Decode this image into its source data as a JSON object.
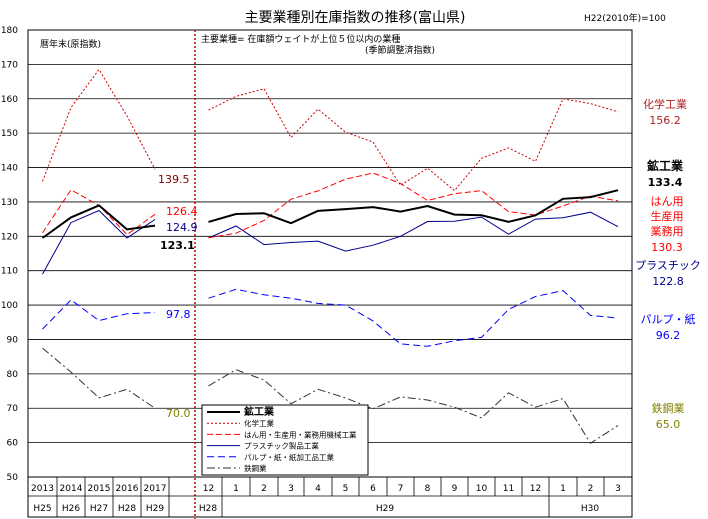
{
  "chart_data": {
    "type": "line",
    "title": "主要業種別在庫指数の推移(富山県)",
    "base_note": "H22(2010年)=100",
    "annual_note": "暦年末(原指数)",
    "monthly_note_1": "主要業種= 在庫額ウェイトが上位５位以内の業種",
    "monthly_note_2": "(季節調整済指数)",
    "ylim": [
      50,
      180
    ],
    "yticks": [
      "180",
      "170",
      "160",
      "150",
      "140",
      "130",
      "120",
      "110",
      "100",
      "90",
      "80",
      "70",
      "60",
      "50"
    ],
    "x_top": [
      "2013",
      "2014",
      "2015",
      "2016",
      "2017",
      "",
      "12",
      "1",
      "2",
      "3",
      "4",
      "5",
      "6",
      "7",
      "8",
      "9",
      "10",
      "11",
      "12",
      "1",
      "2",
      "3"
    ],
    "era_labels": {
      "h25": "H25",
      "h26": "H26",
      "h27": "H27",
      "h28": "H28",
      "h29a": "H29",
      "h28b": "H28",
      "h29b": "H29",
      "h30": "H30"
    },
    "legend": [
      "鉱工業",
      "化学工業",
      "はん用・生産用・業務用機械工業",
      "プラスチック製品工業",
      "パルプ・紙・紙加工品工業",
      "鉄鋼業"
    ],
    "series": [
      {
        "name": "鉱工業",
        "color": "#000000",
        "annual": [
          119.5,
          125.5,
          129.0,
          122.0,
          123.1
        ],
        "monthly": [
          124.2,
          126.5,
          126.7,
          123.8,
          127.4,
          127.9,
          128.5,
          127.2,
          128.8,
          126.3,
          126.1,
          124.2,
          126.1,
          130.9,
          131.4,
          133.4
        ]
      },
      {
        "name": "化学工業",
        "color": "#cc0000",
        "annual": [
          136.0,
          157.5,
          168.5,
          155.0,
          139.5
        ],
        "monthly": [
          156.7,
          160.7,
          162.9,
          148.7,
          157.0,
          150.3,
          147.4,
          134.8,
          139.8,
          133.3,
          142.7,
          145.7,
          141.8,
          160.0,
          158.6,
          156.2
        ]
      },
      {
        "name": "はん用・生産用・業務用機械工業",
        "color": "#ff0000",
        "annual": [
          121.0,
          133.5,
          129.0,
          120.5,
          126.4
        ],
        "monthly": [
          119.6,
          120.9,
          124.6,
          130.8,
          133.2,
          136.6,
          138.4,
          135.4,
          130.4,
          132.4,
          133.3,
          127.2,
          126.2,
          128.8,
          131.7,
          130.3
        ]
      },
      {
        "name": "プラスチック製品工業",
        "color": "#00008b",
        "annual": [
          109.0,
          124.0,
          127.5,
          119.5,
          124.9
        ],
        "monthly": [
          119.5,
          123.0,
          117.6,
          118.2,
          118.6,
          115.7,
          117.4,
          120.0,
          124.3,
          124.4,
          125.6,
          120.6,
          125.0,
          125.4,
          127.0,
          122.8
        ]
      },
      {
        "name": "パルプ・紙・紙加工品工業",
        "color": "#0000ff",
        "annual": [
          93.0,
          101.5,
          95.5,
          97.5,
          97.8
        ],
        "monthly": [
          102.0,
          104.6,
          103.0,
          102.0,
          100.5,
          100.0,
          95.4,
          88.7,
          88.0,
          89.6,
          90.6,
          98.7,
          102.5,
          104.2,
          97.0,
          96.2
        ]
      },
      {
        "name": "鉄鋼業",
        "color": "#333333",
        "annual": [
          87.5,
          80.5,
          73.0,
          75.5,
          70.0
        ],
        "monthly": [
          76.5,
          81.2,
          78.2,
          71.3,
          75.5,
          73.0,
          69.8,
          73.3,
          72.4,
          70.3,
          67.2,
          74.5,
          70.3,
          72.8,
          59.8,
          65.0
        ]
      }
    ],
    "annual_labels": {
      "chem": "139.5",
      "gen": "126.4",
      "plastic": "124.9",
      "mining": "123.1",
      "pulp": "97.8",
      "steel": "70.0"
    },
    "right_labels": {
      "chem_name": "化学工業",
      "chem_val": "156.2",
      "mining_name": "鉱工業",
      "mining_val": "133.4",
      "gen_name1": "はん用",
      "gen_name2": "生産用",
      "gen_name3": "業務用",
      "gen_val": "130.3",
      "plastic_name": "プラスチック",
      "plastic_val": "122.8",
      "pulp_name": "パルプ・紙",
      "pulp_val": "96.2",
      "steel_name": "鉄鋼業",
      "steel_val": "65.0"
    }
  }
}
